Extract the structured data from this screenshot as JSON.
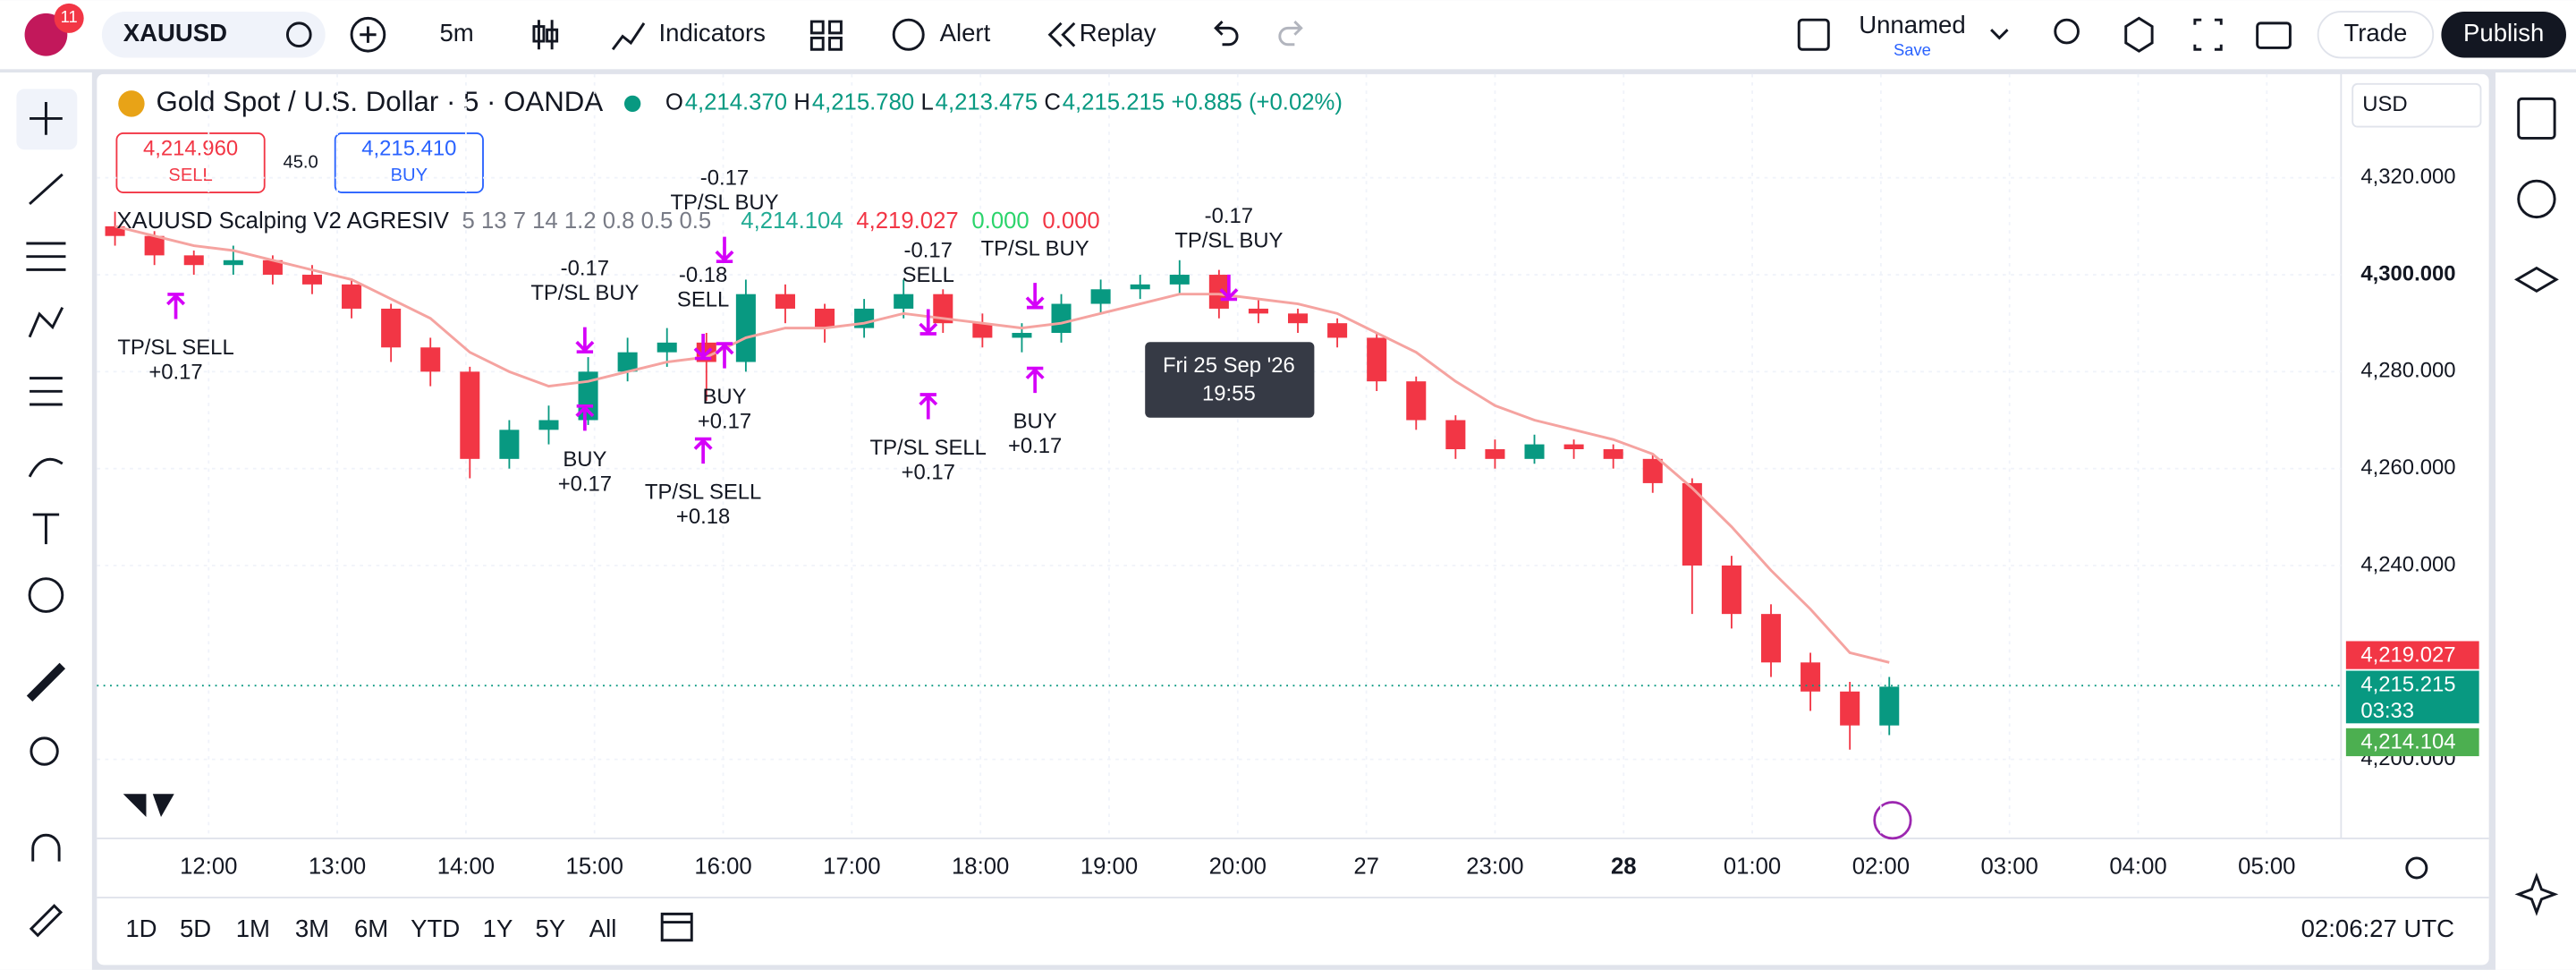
{
  "toolbar": {
    "badge": "11",
    "symbol": "XAUUSD",
    "interval": "5m",
    "indicators": "Indicators",
    "alert": "Alert",
    "replay": "Replay",
    "layout_name": "Unnamed",
    "save": "Save",
    "trade": "Trade",
    "publish": "Publish"
  },
  "chart_data": {
    "type": "candlestick",
    "title": "Gold Spot / U.S. Dollar · 5 · OANDA",
    "legend": [
      {
        "label": "O",
        "value": "4,214.370"
      },
      {
        "label": "H",
        "value": "4,215.780"
      },
      {
        "label": "L",
        "value": "4,213.475"
      },
      {
        "label": "C",
        "value": "4,215.215"
      }
    ],
    "change": "+0.885 (+0.02%)",
    "order_panel": {
      "sell_price": "4,214.960",
      "sell": "SELL",
      "spread": "45.0",
      "buy_price": "4,215.410",
      "buy": "BUY"
    },
    "currency": "USD",
    "indicator": {
      "name": "XAUUSD Scalping V2 AGRESIV",
      "params": "5 13 7 14 1.2 0.8 0.5 0.5",
      "values": [
        {
          "text": "4,214.104",
          "color": "#22ab94"
        },
        {
          "text": "4,219.027",
          "color": "#f23645"
        },
        {
          "text": "0.000",
          "color": "#2bd46b"
        },
        {
          "text": "0.000",
          "color": "#f23645"
        }
      ]
    },
    "up_color": "#089981",
    "down_color": "#f23645",
    "ohlc": [
      [
        4310,
        4313,
        4306,
        4308
      ],
      [
        4308,
        4309,
        4302,
        4304
      ],
      [
        4304,
        4305,
        4300,
        4302
      ],
      [
        4302,
        4306,
        4300,
        4303
      ],
      [
        4303,
        4304,
        4298,
        4300
      ],
      [
        4300,
        4302,
        4296,
        4298
      ],
      [
        4298,
        4299,
        4291,
        4293
      ],
      [
        4293,
        4294,
        4282,
        4285
      ],
      [
        4285,
        4287,
        4277,
        4280
      ],
      [
        4280,
        4281,
        4258,
        4262
      ],
      [
        4262,
        4270,
        4260,
        4268
      ],
      [
        4268,
        4273,
        4265,
        4270
      ],
      [
        4270,
        4283,
        4269,
        4280
      ],
      [
        4280,
        4287,
        4278,
        4284
      ],
      [
        4284,
        4289,
        4281,
        4286
      ],
      [
        4286,
        4288,
        4274,
        4282
      ],
      [
        4282,
        4299,
        4280,
        4296
      ],
      [
        4296,
        4298,
        4290,
        4293
      ],
      [
        4293,
        4294,
        4286,
        4289
      ],
      [
        4289,
        4295,
        4287,
        4293
      ],
      [
        4293,
        4299,
        4291,
        4296
      ],
      [
        4296,
        4297,
        4288,
        4290
      ],
      [
        4290,
        4292,
        4285,
        4287
      ],
      [
        4287,
        4290,
        4284,
        4288
      ],
      [
        4288,
        4296,
        4286,
        4294
      ],
      [
        4294,
        4299,
        4292,
        4297
      ],
      [
        4297,
        4300,
        4295,
        4298
      ],
      [
        4298,
        4303,
        4296,
        4300
      ],
      [
        4300,
        4301,
        4291,
        4293
      ],
      [
        4293,
        4295,
        4290,
        4292
      ],
      [
        4292,
        4293,
        4288,
        4290
      ],
      [
        4290,
        4291,
        4285,
        4287
      ],
      [
        4287,
        4288,
        4276,
        4278
      ],
      [
        4278,
        4279,
        4268,
        4270
      ],
      [
        4270,
        4271,
        4262,
        4264
      ],
      [
        4264,
        4266,
        4260,
        4262
      ],
      [
        4262,
        4267,
        4261,
        4265
      ],
      [
        4265,
        4266,
        4262,
        4264
      ],
      [
        4264,
        4265,
        4260,
        4262
      ],
      [
        4262,
        4263,
        4255,
        4257
      ],
      [
        4257,
        4258,
        4230,
        4240
      ],
      [
        4240,
        4242,
        4227,
        4230
      ],
      [
        4230,
        4232,
        4217,
        4220
      ],
      [
        4220,
        4222,
        4210,
        4214
      ],
      [
        4214,
        4216,
        4202,
        4207
      ],
      [
        4207,
        4217,
        4205,
        4215
      ]
    ],
    "ema": [
      4310,
      4308,
      4306,
      4305,
      4303,
      4301,
      4299,
      4295,
      4291,
      4284,
      4280,
      4277,
      4278,
      4280,
      4282,
      4283,
      4287,
      4289,
      4289,
      4290,
      4292,
      4291,
      4290,
      4289,
      4290,
      4292,
      4294,
      4296,
      4296,
      4295,
      4294,
      4292,
      4288,
      4284,
      4278,
      4273,
      4270,
      4268,
      4266,
      4263,
      4256,
      4248,
      4239,
      4231,
      4222,
      4220
    ],
    "ema_color": "#f5a3a0",
    "ylim": [
      4183.7,
      4341.4
    ],
    "yticks": [
      {
        "value": 4200,
        "label": "4,200.000"
      },
      {
        "value": 4240,
        "label": "4,240.000"
      },
      {
        "value": 4260,
        "label": "4,260.000"
      },
      {
        "value": 4280,
        "label": "4,280.000"
      },
      {
        "value": 4300,
        "label": "4,300.000"
      },
      {
        "value": 4320,
        "label": "4,320.000"
      }
    ],
    "price_labels": [
      {
        "value": 4219.027,
        "label": "4,219.027",
        "color": "#f23645"
      },
      {
        "value": 4215.215,
        "label": "4,215.215",
        "color": "#089981"
      },
      {
        "value": 4214.104,
        "label": "4,214.104",
        "color": "#4caf50"
      }
    ],
    "countdown": "03:33",
    "time_axis": [
      "12:00",
      "13:00",
      "14:00",
      "15:00",
      "16:00",
      "17:00",
      "18:00",
      "19:00",
      "20:00",
      "27",
      "23:00",
      "28",
      "01:00",
      "02:00",
      "03:00",
      "04:00",
      "05:00"
    ],
    "annotations": [
      {
        "lines": [
          "TP/SL SELL",
          "+0.17"
        ]
      },
      {
        "lines": [
          "-0.17",
          "TP/SL BUY"
        ]
      },
      {
        "lines": [
          "BUY",
          "+0.17"
        ]
      },
      {
        "lines": [
          "-0.18",
          "SELL"
        ]
      },
      {
        "lines": [
          "-0.17",
          "TP/SL BUY"
        ]
      },
      {
        "lines": [
          "TP/SL SELL",
          "+0.18"
        ]
      },
      {
        "lines": [
          "BUY",
          "+0.17"
        ]
      },
      {
        "lines": [
          "-0.17",
          "SELL"
        ]
      },
      {
        "lines": [
          "TP/SL SELL",
          "+0.17"
        ]
      },
      {
        "lines": [
          "TP/SL BUY"
        ]
      },
      {
        "lines": [
          "BUY",
          "+0.17"
        ]
      },
      {
        "lines": [
          "-0.17",
          "TP/SL BUY"
        ]
      }
    ],
    "tooltip": [
      "Fri 25 Sep '26",
      "19:55"
    ]
  },
  "bottom": {
    "ranges": [
      "1D",
      "5D",
      "1M",
      "3M",
      "6M",
      "YTD",
      "1Y",
      "5Y",
      "All"
    ],
    "clock": "02:06:27 UTC"
  }
}
